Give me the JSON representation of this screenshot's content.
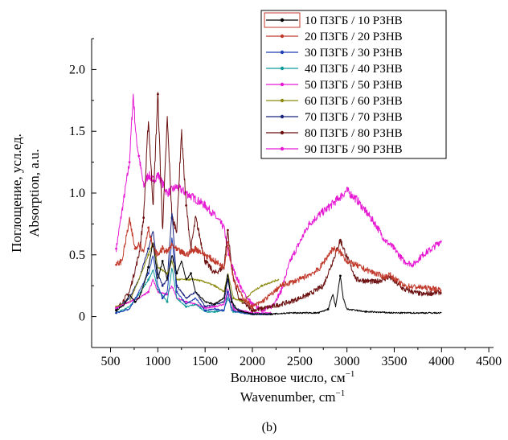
{
  "chart_data": {
    "type": "line",
    "title": "",
    "xlabel_lines": [
      "Волновое число, см",
      "Wavenumber, cm"
    ],
    "xlabel_superscript": "−1",
    "ylabel_lines": [
      "Поглощение, усл.ед.",
      "Absorption, a.u."
    ],
    "xlim": [
      300,
      4550
    ],
    "ylim": [
      -0.25,
      2.25
    ],
    "xticks": [
      500,
      1000,
      1500,
      2000,
      2500,
      3000,
      3500,
      4000,
      4500
    ],
    "xtick_labels": [
      "500",
      "1000",
      "1500",
      "2000",
      "2500",
      "3000",
      "3500",
      "4000",
      "4500"
    ],
    "yticks": [
      0,
      0.5,
      1.0,
      1.5,
      2.0
    ],
    "ytick_labels": [
      "0",
      "0.5",
      "1.0",
      "1.5",
      "2.0"
    ],
    "panel_label": "(b)",
    "grid": false,
    "legend_position": "top-right",
    "series": [
      {
        "name": "10 ПЗГБ / 10 РЗНВ",
        "color": "#000000",
        "marker": "square",
        "points": [
          [
            560,
            0.05
          ],
          [
            650,
            0.1
          ],
          [
            700,
            0.18
          ],
          [
            760,
            0.12
          ],
          [
            800,
            0.15
          ],
          [
            850,
            0.25
          ],
          [
            900,
            0.4
          ],
          [
            950,
            0.6
          ],
          [
            1000,
            0.3
          ],
          [
            1050,
            0.45
          ],
          [
            1100,
            0.3
          ],
          [
            1150,
            0.5
          ],
          [
            1200,
            0.35
          ],
          [
            1250,
            0.45
          ],
          [
            1300,
            0.3
          ],
          [
            1350,
            0.35
          ],
          [
            1400,
            0.2
          ],
          [
            1500,
            0.12
          ],
          [
            1600,
            0.1
          ],
          [
            1700,
            0.15
          ],
          [
            1740,
            0.35
          ],
          [
            1780,
            0.12
          ],
          [
            1850,
            0.05
          ],
          [
            2000,
            0.02
          ],
          [
            2200,
            0.02
          ],
          [
            2400,
            0.03
          ],
          [
            2700,
            0.03
          ],
          [
            2800,
            0.06
          ],
          [
            2850,
            0.18
          ],
          [
            2880,
            0.08
          ],
          [
            2930,
            0.33
          ],
          [
            2960,
            0.15
          ],
          [
            3000,
            0.06
          ],
          [
            3200,
            0.04
          ],
          [
            3500,
            0.03
          ],
          [
            4000,
            0.03
          ]
        ]
      },
      {
        "name": "20 ПЗГБ / 20 РЗНВ",
        "color": "#c0392b",
        "marker": "circle",
        "points": [
          [
            560,
            0.42
          ],
          [
            620,
            0.45
          ],
          [
            700,
            0.78
          ],
          [
            760,
            0.55
          ],
          [
            800,
            0.6
          ],
          [
            850,
            0.52
          ],
          [
            900,
            0.72
          ],
          [
            950,
            0.55
          ],
          [
            1000,
            0.5
          ],
          [
            1050,
            0.55
          ],
          [
            1100,
            0.52
          ],
          [
            1150,
            0.58
          ],
          [
            1200,
            0.54
          ],
          [
            1300,
            0.5
          ],
          [
            1400,
            0.55
          ],
          [
            1500,
            0.5
          ],
          [
            1600,
            0.45
          ],
          [
            1700,
            0.4
          ],
          [
            1740,
            0.6
          ],
          [
            1800,
            0.3
          ],
          [
            1900,
            0.15
          ],
          [
            2000,
            0.08
          ],
          [
            2100,
            0.12
          ],
          [
            2200,
            0.18
          ],
          [
            2300,
            0.25
          ],
          [
            2500,
            0.3
          ],
          [
            2700,
            0.38
          ],
          [
            2850,
            0.55
          ],
          [
            2930,
            0.52
          ],
          [
            3000,
            0.45
          ],
          [
            3200,
            0.38
          ],
          [
            3400,
            0.32
          ],
          [
            3450,
            0.34
          ],
          [
            3600,
            0.25
          ],
          [
            4000,
            0.22
          ]
        ]
      },
      {
        "name": "30 ПЗГБ / 30 РЗНВ",
        "color": "#1f3fb5",
        "marker": "triangle",
        "points": [
          [
            560,
            0.03
          ],
          [
            700,
            0.06
          ],
          [
            800,
            0.2
          ],
          [
            900,
            0.35
          ],
          [
            950,
            0.5
          ],
          [
            1000,
            0.25
          ],
          [
            1050,
            0.15
          ],
          [
            1100,
            0.2
          ],
          [
            1150,
            0.65
          ],
          [
            1200,
            0.2
          ],
          [
            1300,
            0.1
          ],
          [
            1400,
            0.15
          ],
          [
            1500,
            0.05
          ],
          [
            1600,
            0.06
          ],
          [
            1700,
            0.05
          ],
          [
            1740,
            0.2
          ],
          [
            1780,
            0.05
          ],
          [
            1900,
            0.03
          ],
          [
            2000,
            0.02
          ],
          [
            2200,
            0.02
          ]
        ]
      },
      {
        "name": "40 ПЗГБ / 40 РЗНВ",
        "color": "#0f9a9a",
        "marker": "triangle-down",
        "points": [
          [
            560,
            0.03
          ],
          [
            700,
            0.08
          ],
          [
            800,
            0.18
          ],
          [
            900,
            0.3
          ],
          [
            950,
            0.38
          ],
          [
            1000,
            0.22
          ],
          [
            1100,
            0.12
          ],
          [
            1150,
            0.4
          ],
          [
            1200,
            0.15
          ],
          [
            1300,
            0.08
          ],
          [
            1400,
            0.1
          ],
          [
            1500,
            0.04
          ],
          [
            1600,
            0.04
          ],
          [
            1700,
            0.05
          ],
          [
            1740,
            0.15
          ],
          [
            1800,
            0.04
          ],
          [
            2000,
            0.02
          ],
          [
            2200,
            0.02
          ]
        ]
      },
      {
        "name": "50 ПЗГБ / 50 РЗНВ",
        "color": "#e619d3",
        "marker": "diamond",
        "points": [
          [
            560,
            0.07
          ],
          [
            700,
            0.12
          ],
          [
            800,
            0.15
          ],
          [
            900,
            0.2
          ],
          [
            950,
            0.3
          ],
          [
            1000,
            0.2
          ],
          [
            1100,
            0.18
          ],
          [
            1150,
            0.25
          ],
          [
            1200,
            0.15
          ],
          [
            1300,
            0.12
          ],
          [
            1400,
            0.1
          ],
          [
            1500,
            0.07
          ],
          [
            1600,
            0.08
          ],
          [
            1700,
            0.1
          ],
          [
            1740,
            0.22
          ],
          [
            1800,
            0.06
          ],
          [
            2000,
            0.03
          ],
          [
            2200,
            0.03
          ]
        ]
      },
      {
        "name": "60 ПЗГБ / 60 РЗНВ",
        "color": "#8c8c14",
        "marker": "triangle-left",
        "points": [
          [
            560,
            0.08
          ],
          [
            700,
            0.12
          ],
          [
            800,
            0.3
          ],
          [
            900,
            0.5
          ],
          [
            950,
            0.6
          ],
          [
            1000,
            0.4
          ],
          [
            1100,
            0.35
          ],
          [
            1150,
            0.45
          ],
          [
            1200,
            0.3
          ],
          [
            1300,
            0.3
          ],
          [
            1400,
            0.3
          ],
          [
            1500,
            0.28
          ],
          [
            1600,
            0.25
          ],
          [
            1700,
            0.2
          ],
          [
            1740,
            0.35
          ],
          [
            1800,
            0.15
          ],
          [
            1900,
            0.12
          ],
          [
            2000,
            0.2
          ],
          [
            2100,
            0.25
          ],
          [
            2200,
            0.28
          ],
          [
            2280,
            0.3
          ]
        ]
      },
      {
        "name": "70 ПЗГБ / 70 РЗНВ",
        "color": "#1a237e",
        "marker": "triangle-right",
        "points": [
          [
            560,
            0.06
          ],
          [
            700,
            0.15
          ],
          [
            800,
            0.3
          ],
          [
            900,
            0.55
          ],
          [
            950,
            0.7
          ],
          [
            1000,
            0.35
          ],
          [
            1050,
            0.25
          ],
          [
            1100,
            0.3
          ],
          [
            1150,
            0.85
          ],
          [
            1200,
            0.25
          ],
          [
            1300,
            0.15
          ],
          [
            1400,
            0.2
          ],
          [
            1500,
            0.08
          ],
          [
            1600,
            0.1
          ],
          [
            1700,
            0.12
          ],
          [
            1740,
            0.3
          ],
          [
            1800,
            0.08
          ],
          [
            1900,
            0.04
          ],
          [
            2000,
            0.02
          ],
          [
            2200,
            0.02
          ]
        ]
      },
      {
        "name": "80 ПЗГБ / 80 РЗНВ",
        "color": "#6b0f0f",
        "marker": "hexagon",
        "points": [
          [
            560,
            0.05
          ],
          [
            700,
            0.2
          ],
          [
            800,
            0.5
          ],
          [
            850,
            0.8
          ],
          [
            900,
            1.6
          ],
          [
            950,
            0.9
          ],
          [
            1000,
            1.8
          ],
          [
            1050,
            0.7
          ],
          [
            1100,
            1.6
          ],
          [
            1150,
            0.8
          ],
          [
            1200,
            0.7
          ],
          [
            1250,
            1.5
          ],
          [
            1300,
            0.9
          ],
          [
            1350,
            0.55
          ],
          [
            1400,
            0.8
          ],
          [
            1500,
            0.45
          ],
          [
            1600,
            0.35
          ],
          [
            1700,
            0.4
          ],
          [
            1740,
            0.7
          ],
          [
            1780,
            0.4
          ],
          [
            1850,
            0.15
          ],
          [
            2000,
            0.05
          ],
          [
            2200,
            0.08
          ],
          [
            2400,
            0.12
          ],
          [
            2600,
            0.18
          ],
          [
            2750,
            0.25
          ],
          [
            2850,
            0.45
          ],
          [
            2930,
            0.62
          ],
          [
            3000,
            0.48
          ],
          [
            3100,
            0.3
          ],
          [
            3300,
            0.28
          ],
          [
            3450,
            0.32
          ],
          [
            3600,
            0.22
          ],
          [
            3800,
            0.18
          ],
          [
            4000,
            0.2
          ]
        ]
      },
      {
        "name": "90 ПЗГБ / 90 РЗНВ",
        "color": "#e619d3",
        "marker": "star",
        "points": [
          [
            560,
            0.55
          ],
          [
            600,
            0.75
          ],
          [
            650,
            1.0
          ],
          [
            700,
            1.25
          ],
          [
            740,
            1.8
          ],
          [
            770,
            1.45
          ],
          [
            800,
            1.3
          ],
          [
            850,
            1.05
          ],
          [
            900,
            1.15
          ],
          [
            950,
            1.1
          ],
          [
            1000,
            1.15
          ],
          [
            1100,
            1.0
          ],
          [
            1200,
            1.05
          ],
          [
            1300,
            1.0
          ],
          [
            1400,
            0.95
          ],
          [
            1500,
            0.9
          ],
          [
            1600,
            0.82
          ],
          [
            1700,
            0.72
          ],
          [
            1750,
            0.5
          ],
          [
            1800,
            0.38
          ],
          [
            1900,
            0.2
          ],
          [
            2000,
            0.1
          ],
          [
            2100,
            0.05
          ],
          [
            2200,
            0.08
          ],
          [
            2300,
            0.2
          ],
          [
            2400,
            0.45
          ],
          [
            2500,
            0.6
          ],
          [
            2600,
            0.75
          ],
          [
            2700,
            0.82
          ],
          [
            2800,
            0.88
          ],
          [
            2900,
            0.95
          ],
          [
            3000,
            1.02
          ],
          [
            3100,
            0.95
          ],
          [
            3200,
            0.85
          ],
          [
            3300,
            0.75
          ],
          [
            3400,
            0.62
          ],
          [
            3500,
            0.55
          ],
          [
            3600,
            0.45
          ],
          [
            3700,
            0.42
          ],
          [
            3800,
            0.5
          ],
          [
            3900,
            0.55
          ],
          [
            4000,
            0.62
          ]
        ]
      }
    ]
  }
}
